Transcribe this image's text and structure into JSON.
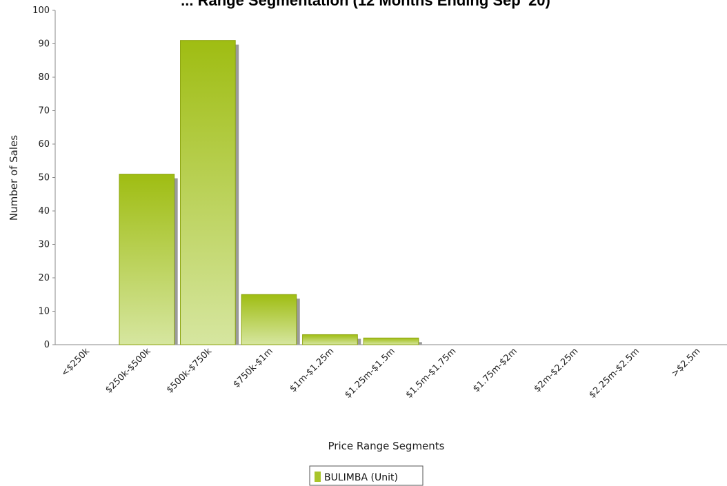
{
  "chart_data": {
    "type": "bar",
    "title": "... Range Segmentation (12 Months Ending Sep '20)",
    "xlabel": "Price Range Segments",
    "ylabel": "Number of Sales",
    "ylim": [
      0,
      100
    ],
    "yticks": [
      0,
      10,
      20,
      30,
      40,
      50,
      60,
      70,
      80,
      90,
      100
    ],
    "categories": [
      "<$250k",
      "$250k-$500k",
      "$500k-$750k",
      "$750k-$1m",
      "$1m-$1.25m",
      "$1.25m-$1.5m",
      "$1.5m-$1.75m",
      "$1.75m-$2m",
      "$2m-$2.25m",
      "$2.25m-$2.5m",
      ">$2.5m"
    ],
    "series": [
      {
        "name": "BULIMBA (Unit)",
        "values": [
          0,
          51,
          91,
          15,
          3,
          2,
          0,
          0,
          0,
          0,
          0
        ]
      }
    ],
    "colors": {
      "bar_top": "#9fbd12",
      "bar_bottom": "#d6e6a0",
      "bar_stroke": "#8da50f",
      "shadow": "#9a9a9a",
      "legend_swatch": "#a9c52a"
    },
    "grid": false,
    "legend_position": "bottom-center"
  }
}
